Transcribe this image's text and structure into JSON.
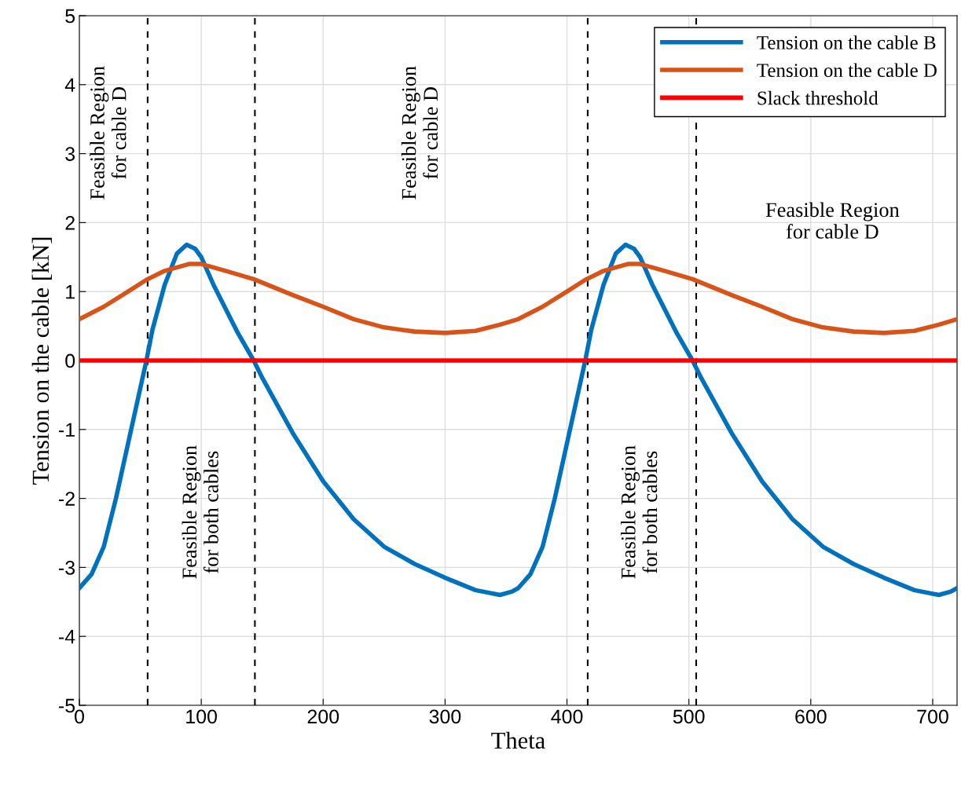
{
  "chart_data": {
    "type": "line",
    "xlabel": "Theta",
    "ylabel": "Tension on the cable [kN]",
    "xlim": [
      0,
      720
    ],
    "ylim": [
      -5,
      5
    ],
    "xticks": [
      0,
      100,
      200,
      300,
      400,
      500,
      600,
      700
    ],
    "yticks": [
      -5,
      -4,
      -3,
      -2,
      -1,
      0,
      1,
      2,
      3,
      4,
      5
    ],
    "grid": true,
    "legend": "top right",
    "line_style": "solid",
    "marker": "none",
    "series": [
      {
        "name": "Tension on the cable B",
        "color": "#0072bd",
        "x": [
          0,
          10,
          20,
          30,
          40,
          50,
          55,
          60,
          70,
          80,
          88,
          95,
          100,
          110,
          120,
          130,
          143,
          150,
          175,
          200,
          225,
          250,
          275,
          300,
          325,
          345,
          355,
          360,
          370,
          380,
          390,
          400,
          410,
          415,
          420,
          430,
          440,
          448,
          455,
          460,
          470,
          480,
          490,
          503,
          510,
          535,
          560,
          585,
          610,
          635,
          660,
          685,
          705,
          715,
          720
        ],
        "values": [
          -3.3,
          -3.1,
          -2.7,
          -2.0,
          -1.2,
          -0.4,
          0,
          0.45,
          1.1,
          1.55,
          1.68,
          1.62,
          1.5,
          1.1,
          0.75,
          0.4,
          0,
          -0.25,
          -1.05,
          -1.75,
          -2.3,
          -2.7,
          -2.95,
          -3.15,
          -3.33,
          -3.4,
          -3.35,
          -3.3,
          -3.1,
          -2.7,
          -2.0,
          -1.2,
          -0.4,
          0,
          0.45,
          1.1,
          1.55,
          1.68,
          1.62,
          1.5,
          1.1,
          0.75,
          0.4,
          0,
          -0.25,
          -1.05,
          -1.75,
          -2.3,
          -2.7,
          -2.95,
          -3.15,
          -3.33,
          -3.4,
          -3.35,
          -3.3
        ]
      },
      {
        "name": "Tension on the cable D",
        "color": "#d95319",
        "x": [
          0,
          20,
          40,
          55,
          70,
          90,
          100,
          120,
          143,
          175,
          200,
          225,
          250,
          275,
          300,
          325,
          345,
          360,
          380,
          400,
          415,
          430,
          450,
          460,
          480,
          503,
          535,
          560,
          585,
          610,
          635,
          660,
          685,
          705,
          720
        ],
        "values": [
          0.6,
          0.78,
          1.0,
          1.17,
          1.3,
          1.4,
          1.4,
          1.3,
          1.18,
          0.95,
          0.78,
          0.6,
          0.48,
          0.42,
          0.4,
          0.43,
          0.52,
          0.6,
          0.78,
          1.0,
          1.17,
          1.3,
          1.4,
          1.4,
          1.3,
          1.18,
          0.95,
          0.78,
          0.6,
          0.48,
          0.42,
          0.4,
          0.43,
          0.52,
          0.6
        ]
      },
      {
        "name": "Slack threshold",
        "color": "#ff0000",
        "x": [
          0,
          720
        ],
        "values": [
          0,
          0
        ]
      }
    ],
    "ref_lines": [
      {
        "axis": "x",
        "value": 56,
        "color": "#000000",
        "line_style": "dashed"
      },
      {
        "axis": "x",
        "value": 144,
        "color": "#000000",
        "line_style": "dashed"
      },
      {
        "axis": "x",
        "value": 417,
        "color": "#000000",
        "line_style": "dashed"
      },
      {
        "axis": "x",
        "value": 506,
        "color": "#000000",
        "line_style": "dashed"
      }
    ],
    "annotations": [
      "Feasible Region\nfor cable D",
      "Feasible Region\nfor cable D",
      "Feasible Region\nfor cable D",
      "Feasible Region\nfor both cables",
      "Feasible Region\nfor both cables"
    ]
  }
}
